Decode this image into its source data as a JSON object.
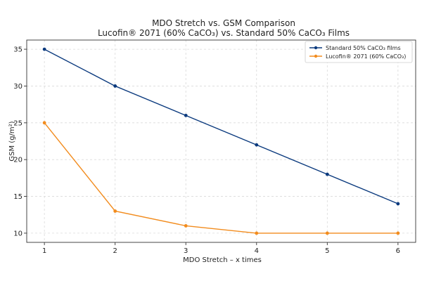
{
  "chart_data": {
    "type": "line",
    "title": "MDO Stretch vs. GSM Comparison",
    "subtitle": "Lucofin® 2071 (60% CaCO₃) vs. Standard 50% CaCO₃ Films",
    "xlabel": "MDO Stretch – x times",
    "ylabel": "GSM (g/m²)",
    "x": [
      1,
      2,
      3,
      4,
      5,
      6
    ],
    "xlim": [
      0.75,
      6.25
    ],
    "ylim": [
      8.75,
      36.25
    ],
    "xticks": [
      1,
      2,
      3,
      4,
      5,
      6
    ],
    "yticks": [
      10,
      15,
      20,
      25,
      30,
      35
    ],
    "grid": true,
    "legend_position": "top-right",
    "series": [
      {
        "name": "Standard 50% CaCO₃ films",
        "color": "#0b3a7e",
        "values": [
          35,
          30,
          26,
          22,
          18,
          14
        ]
      },
      {
        "name": "Lucofin® 2071 (60% CaCO₃)",
        "color": "#f28c1e",
        "values": [
          25,
          13,
          11,
          10,
          10,
          10
        ]
      }
    ]
  }
}
